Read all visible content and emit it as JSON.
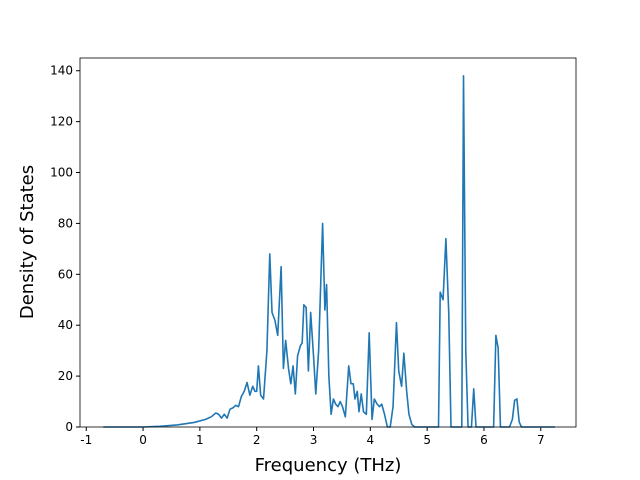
{
  "chart_data": {
    "type": "line",
    "xlabel": "Frequency (THz)",
    "ylabel": "Density of States",
    "color": "#1f77b4",
    "x": [
      -0.7,
      0,
      0.3,
      0.6,
      0.9,
      1.1,
      1.2,
      1.28,
      1.33,
      1.38,
      1.43,
      1.48,
      1.53,
      1.58,
      1.63,
      1.68,
      1.73,
      1.78,
      1.83,
      1.88,
      1.93,
      1.97,
      2.0,
      2.03,
      2.07,
      2.12,
      2.18,
      2.23,
      2.27,
      2.32,
      2.37,
      2.43,
      2.47,
      2.51,
      2.56,
      2.6,
      2.64,
      2.68,
      2.72,
      2.77,
      2.8,
      2.83,
      2.87,
      2.91,
      2.95,
      3.0,
      3.04,
      3.09,
      3.16,
      3.2,
      3.23,
      3.27,
      3.31,
      3.35,
      3.39,
      3.43,
      3.47,
      3.51,
      3.56,
      3.62,
      3.66,
      3.7,
      3.73,
      3.77,
      3.8,
      3.84,
      3.88,
      3.93,
      3.98,
      4.03,
      4.07,
      4.12,
      4.16,
      4.2,
      4.25,
      4.3,
      4.35,
      4.4,
      4.46,
      4.5,
      4.55,
      4.59,
      4.64,
      4.68,
      4.73,
      4.78,
      5.15,
      5.2,
      5.23,
      5.28,
      5.33,
      5.38,
      5.42,
      5.58,
      5.61,
      5.64,
      5.68,
      5.72,
      5.78,
      5.82,
      5.86,
      6.17,
      6.21,
      6.25,
      6.29,
      6.45,
      6.5,
      6.54,
      6.58,
      6.62,
      6.66,
      7.25
    ],
    "values": [
      0,
      0,
      0.3,
      0.8,
      1.8,
      3,
      4,
      5.5,
      5,
      3.5,
      5,
      3.5,
      7,
      7.5,
      8.5,
      8,
      12,
      14,
      17.5,
      12.5,
      16,
      14,
      14,
      24,
      12.5,
      11,
      30,
      68,
      45,
      42,
      36,
      63,
      23,
      34,
      23,
      17,
      24,
      13,
      28,
      32,
      33,
      48,
      47,
      22,
      45,
      28,
      13,
      30,
      80,
      46,
      56,
      20,
      5,
      11,
      9,
      8,
      10,
      8,
      4,
      24,
      17,
      17,
      11,
      14,
      6,
      13,
      6,
      5,
      37,
      3,
      11,
      9,
      8,
      9,
      5,
      0,
      0,
      8,
      41,
      22,
      16,
      29,
      14,
      5,
      1,
      0,
      0,
      0,
      53,
      50,
      74,
      45,
      0,
      0,
      0,
      138,
      30,
      0,
      0,
      15,
      0,
      0,
      36,
      31,
      0,
      0,
      3,
      10.5,
      11,
      2,
      0,
      0
    ],
    "xlim": [
      -1.11,
      7.62
    ],
    "xticks": [
      -1,
      0,
      1,
      2,
      3,
      4,
      5,
      6,
      7
    ],
    "ylim": [
      0,
      145
    ],
    "yticks": [
      0,
      20,
      40,
      60,
      80,
      100,
      120,
      140
    ]
  }
}
